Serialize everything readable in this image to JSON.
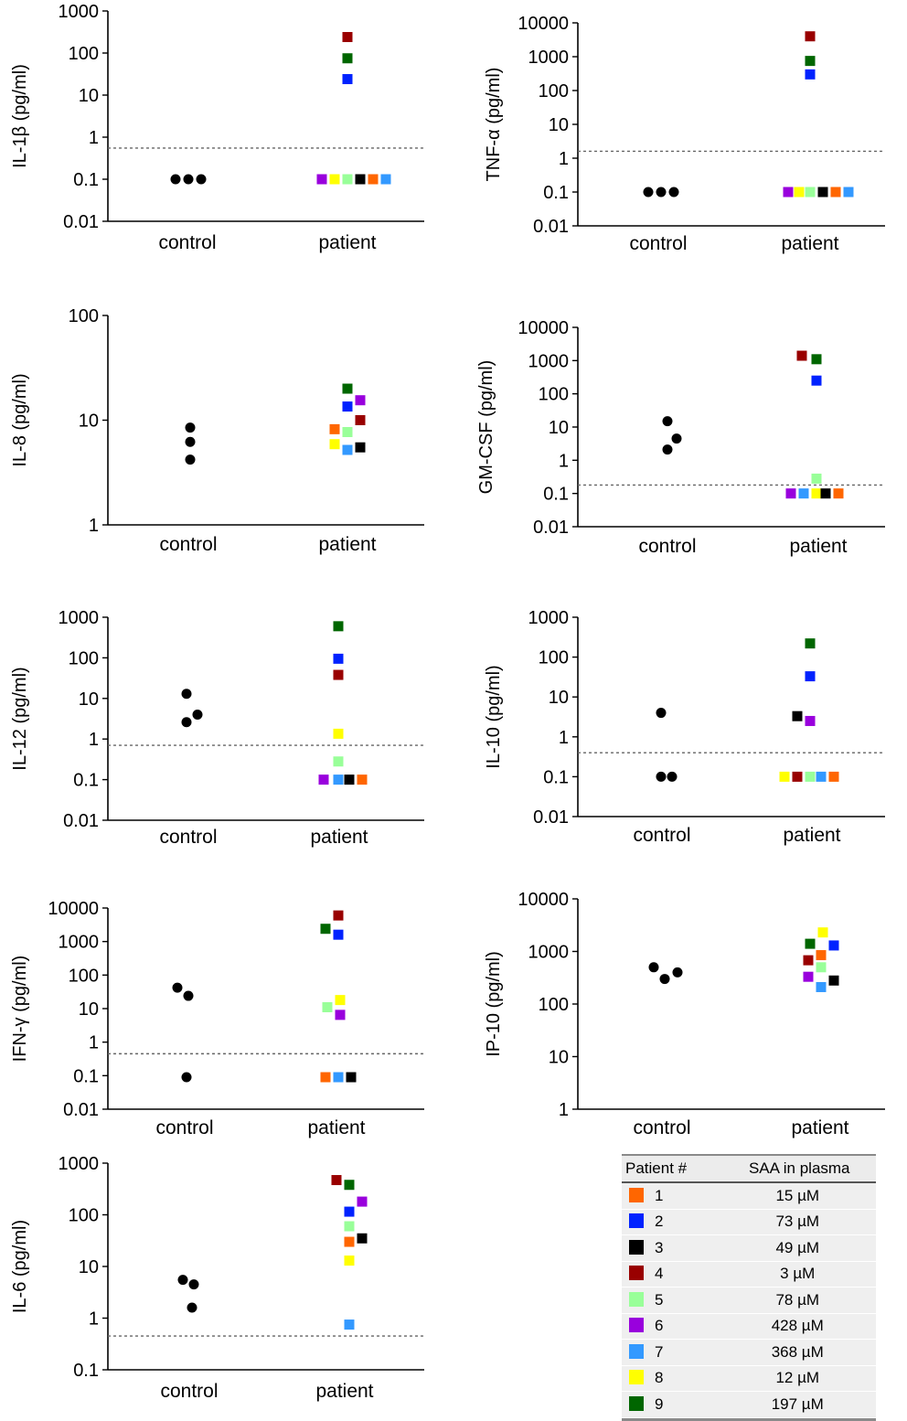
{
  "colors": {
    "control": "#000000",
    "1": "#ff6600",
    "2": "#0022ff",
    "3": "#000000",
    "4": "#990000",
    "5": "#99ff99",
    "6": "#9900dd",
    "7": "#3399ff",
    "8": "#ffff00",
    "9": "#006600",
    "cutoff_line": "#666666"
  },
  "chart_data": [
    {
      "id": "il1b",
      "type": "scatter",
      "ylabel": "IL-1β (pg/ml)",
      "scale": "log",
      "ylim": [
        0.01,
        1000
      ],
      "yticks": [
        "0.01",
        "0.1",
        "1",
        "10",
        "100",
        "1000"
      ],
      "categories": [
        "control",
        "patient"
      ],
      "cutoff": 0.55,
      "control": [
        0.1,
        0.1,
        0.1
      ],
      "patient": [
        {
          "id": "4",
          "value": 240
        },
        {
          "id": "9",
          "value": 75
        },
        {
          "id": "2",
          "value": 24
        },
        {
          "id": "6",
          "value": 0.1
        },
        {
          "id": "8",
          "value": 0.1
        },
        {
          "id": "5",
          "value": 0.1
        },
        {
          "id": "3",
          "value": 0.1
        },
        {
          "id": "1",
          "value": 0.1
        },
        {
          "id": "7",
          "value": 0.1
        }
      ]
    },
    {
      "id": "tnfa",
      "type": "scatter",
      "ylabel": "TNF-α (pg/ml)",
      "scale": "log",
      "ylim": [
        0.01,
        10000
      ],
      "yticks": [
        "0.01",
        "0.1",
        "1",
        "10",
        "100",
        "1000",
        "10000"
      ],
      "categories": [
        "control",
        "patient"
      ],
      "cutoff": 1.6,
      "control": [
        0.1,
        0.1,
        0.1
      ],
      "patient": [
        {
          "id": "4",
          "value": 4000
        },
        {
          "id": "9",
          "value": 750
        },
        {
          "id": "2",
          "value": 300
        },
        {
          "id": "6",
          "value": 0.1
        },
        {
          "id": "8",
          "value": 0.1
        },
        {
          "id": "5",
          "value": 0.1
        },
        {
          "id": "3",
          "value": 0.1
        },
        {
          "id": "1",
          "value": 0.1
        },
        {
          "id": "7",
          "value": 0.1
        }
      ]
    },
    {
      "id": "il8",
      "type": "scatter",
      "ylabel": "IL-8  (pg/ml)",
      "scale": "log",
      "ylim": [
        1,
        100
      ],
      "yticks": [
        "1",
        "10",
        "100"
      ],
      "categories": [
        "control",
        "patient"
      ],
      "cutoff": null,
      "control": [
        8.5,
        6.2,
        4.2
      ],
      "patient": [
        {
          "id": "9",
          "value": 20
        },
        {
          "id": "6",
          "value": 15.5
        },
        {
          "id": "2",
          "value": 13.5
        },
        {
          "id": "4",
          "value": 10
        },
        {
          "id": "1",
          "value": 8.2
        },
        {
          "id": "5",
          "value": 7.7
        },
        {
          "id": "8",
          "value": 5.9
        },
        {
          "id": "3",
          "value": 5.5
        },
        {
          "id": "7",
          "value": 5.2
        }
      ]
    },
    {
      "id": "gmcsf",
      "type": "scatter",
      "ylabel": "GM-CSF (pg/ml)",
      "scale": "log",
      "ylim": [
        0.01,
        10000
      ],
      "yticks": [
        "0.01",
        "0.1",
        "1",
        "10",
        "100",
        "1000",
        "10000"
      ],
      "categories": [
        "control",
        "patient"
      ],
      "cutoff": 0.18,
      "control": [
        15,
        4.5,
        2.1
      ],
      "patient": [
        {
          "id": "4",
          "value": 1400
        },
        {
          "id": "9",
          "value": 1100
        },
        {
          "id": "2",
          "value": 250
        },
        {
          "id": "5",
          "value": 0.28
        },
        {
          "id": "6",
          "value": 0.1
        },
        {
          "id": "7",
          "value": 0.1
        },
        {
          "id": "8",
          "value": 0.1
        },
        {
          "id": "3",
          "value": 0.1
        },
        {
          "id": "1",
          "value": 0.1
        }
      ]
    },
    {
      "id": "il12",
      "type": "scatter",
      "ylabel": "IL-12  (pg/ml)",
      "scale": "log",
      "ylim": [
        0.01,
        1000
      ],
      "yticks": [
        "0.01",
        "0.1",
        "1",
        "10",
        "100",
        "1000"
      ],
      "categories": [
        "control",
        "patient"
      ],
      "cutoff": 0.7,
      "control": [
        13,
        4,
        2.6
      ],
      "patient": [
        {
          "id": "9",
          "value": 600
        },
        {
          "id": "2",
          "value": 95
        },
        {
          "id": "4",
          "value": 38
        },
        {
          "id": "8",
          "value": 1.35
        },
        {
          "id": "5",
          "value": 0.28
        },
        {
          "id": "6",
          "value": 0.1
        },
        {
          "id": "7",
          "value": 0.1
        },
        {
          "id": "3",
          "value": 0.1
        },
        {
          "id": "1",
          "value": 0.1
        }
      ]
    },
    {
      "id": "il10",
      "type": "scatter",
      "ylabel": "IL-10  (pg/ml)",
      "scale": "log",
      "ylim": [
        0.01,
        1000
      ],
      "yticks": [
        "0.01",
        "0.1",
        "1",
        "10",
        "100",
        "1000"
      ],
      "categories": [
        "control",
        "patient"
      ],
      "cutoff": 0.4,
      "control": [
        4,
        0.1,
        0.1
      ],
      "patient": [
        {
          "id": "9",
          "value": 220
        },
        {
          "id": "2",
          "value": 33
        },
        {
          "id": "3",
          "value": 3.3
        },
        {
          "id": "6",
          "value": 2.5
        },
        {
          "id": "8",
          "value": 0.1
        },
        {
          "id": "4",
          "value": 0.1
        },
        {
          "id": "5",
          "value": 0.1
        },
        {
          "id": "7",
          "value": 0.1
        },
        {
          "id": "1",
          "value": 0.1
        }
      ]
    },
    {
      "id": "ifng",
      "type": "scatter",
      "ylabel": "IFN-γ  (pg/ml)",
      "scale": "log",
      "ylim": [
        0.01,
        10000
      ],
      "yticks": [
        "0.01",
        "0.1",
        "1",
        "10",
        "100",
        "1000",
        "10000"
      ],
      "categories": [
        "control",
        "patient"
      ],
      "cutoff": 0.45,
      "control": [
        42,
        24,
        0.09
      ],
      "patient": [
        {
          "id": "4",
          "value": 6000
        },
        {
          "id": "9",
          "value": 2400
        },
        {
          "id": "2",
          "value": 1600
        },
        {
          "id": "8",
          "value": 18
        },
        {
          "id": "5",
          "value": 11
        },
        {
          "id": "6",
          "value": 6.5
        },
        {
          "id": "1",
          "value": 0.09
        },
        {
          "id": "7",
          "value": 0.09
        },
        {
          "id": "3",
          "value": 0.09
        }
      ]
    },
    {
      "id": "ip10",
      "type": "scatter",
      "ylabel": "IP-10  (pg/ml)",
      "scale": "log",
      "ylim": [
        1,
        10000
      ],
      "yticks": [
        "1",
        "10",
        "100",
        "1000",
        "10000"
      ],
      "categories": [
        "control",
        "patient"
      ],
      "cutoff": null,
      "control": [
        500,
        300,
        400
      ],
      "patient": [
        {
          "id": "8",
          "value": 2300
        },
        {
          "id": "9",
          "value": 1400
        },
        {
          "id": "2",
          "value": 1300
        },
        {
          "id": "1",
          "value": 850
        },
        {
          "id": "4",
          "value": 680
        },
        {
          "id": "5",
          "value": 500
        },
        {
          "id": "6",
          "value": 330
        },
        {
          "id": "3",
          "value": 280
        },
        {
          "id": "7",
          "value": 210
        }
      ]
    },
    {
      "id": "il6",
      "type": "scatter",
      "ylabel": "IL-6  (pg/ml)",
      "scale": "log",
      "ylim": [
        0.1,
        1000
      ],
      "yticks": [
        "0.1",
        "1",
        "10",
        "100",
        "1000"
      ],
      "categories": [
        "control",
        "patient"
      ],
      "cutoff": 0.45,
      "control": [
        5.5,
        4.5,
        1.6
      ],
      "patient": [
        {
          "id": "4",
          "value": 470
        },
        {
          "id": "9",
          "value": 380
        },
        {
          "id": "6",
          "value": 180
        },
        {
          "id": "2",
          "value": 115
        },
        {
          "id": "5",
          "value": 60
        },
        {
          "id": "3",
          "value": 35
        },
        {
          "id": "1",
          "value": 30
        },
        {
          "id": "8",
          "value": 13
        },
        {
          "id": "7",
          "value": 0.75
        }
      ]
    }
  ],
  "legend": {
    "header_patient": "Patient #",
    "header_saa": "SAA in plasma",
    "rows": [
      {
        "id": "1",
        "saa": "15 µM"
      },
      {
        "id": "2",
        "saa": "73 µM"
      },
      {
        "id": "3",
        "saa": "49 µM"
      },
      {
        "id": "4",
        "saa": "3 µM"
      },
      {
        "id": "5",
        "saa": "78 µM"
      },
      {
        "id": "6",
        "saa": "428 µM"
      },
      {
        "id": "7",
        "saa": "368 µM"
      },
      {
        "id": "8",
        "saa": "12 µM"
      },
      {
        "id": "9",
        "saa": "197 µM"
      }
    ]
  }
}
